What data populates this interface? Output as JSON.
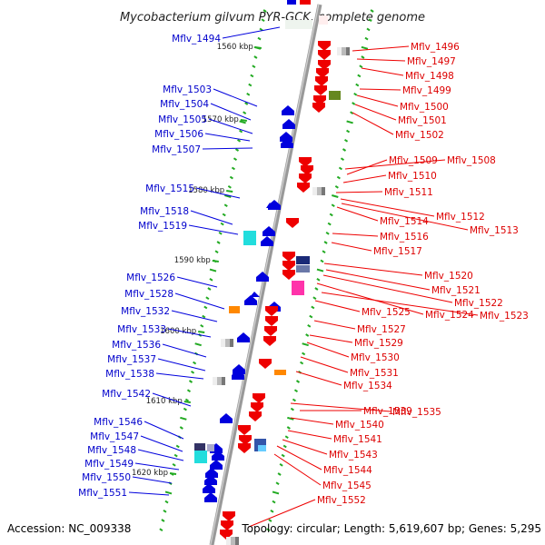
{
  "title": "Mycobacterium gilvum PYR-GCK, complete genome",
  "accession": "Accession: NC_009338",
  "topology": "Topology: circular; Length: 5,619,607 bp; Genes: 5,295",
  "colors": {
    "forward": "#0000dd",
    "reverse": "#ee0000",
    "backbone": "#999999",
    "tick": "#22aa22",
    "cyan": "#22dddd",
    "magenta": "#ff33aa",
    "orange": "#ff8800",
    "olive": "#66881f"
  },
  "scale_labels": [
    "1560 kbp",
    "1570 kbp",
    "1580 kbp",
    "1590 kbp",
    "1600 kbp",
    "1610 kbp",
    "1620 kbp"
  ],
  "left_genes": [
    "Mflv_1494",
    "Mflv_1503",
    "Mflv_1504",
    "Mflv_1505",
    "Mflv_1506",
    "Mflv_1507",
    "Mflv_1515",
    "Mflv_1518",
    "Mflv_1519",
    "Mflv_1526",
    "Mflv_1528",
    "Mflv_1532",
    "Mflv_1533",
    "Mflv_1536",
    "Mflv_1537",
    "Mflv_1538",
    "Mflv_1542",
    "Mflv_1546",
    "Mflv_1547",
    "Mflv_1548",
    "Mflv_1549",
    "Mflv_1550",
    "Mflv_1551"
  ],
  "right_genes": [
    "Mflv_1496",
    "Mflv_1497",
    "Mflv_1498",
    "Mflv_1499",
    "Mflv_1500",
    "Mflv_1501",
    "Mflv_1502",
    "Mflv_1508",
    "Mflv_1509",
    "Mflv_1510",
    "Mflv_1511",
    "Mflv_1512",
    "Mflv_1514",
    "Mflv_1513",
    "Mflv_1516",
    "Mflv_1517",
    "Mflv_1520",
    "Mflv_1521",
    "Mflv_1522",
    "Mflv_1524",
    "Mflv_1523",
    "Mflv_1525",
    "Mflv_1527",
    "Mflv_1529",
    "Mflv_1530",
    "Mflv_1531",
    "Mflv_1534",
    "Mflv_1539",
    "Mflv_1535",
    "Mflv_1540",
    "Mflv_1541",
    "Mflv_1543",
    "Mflv_1544",
    "Mflv_1545",
    "Mflv_1552"
  ]
}
